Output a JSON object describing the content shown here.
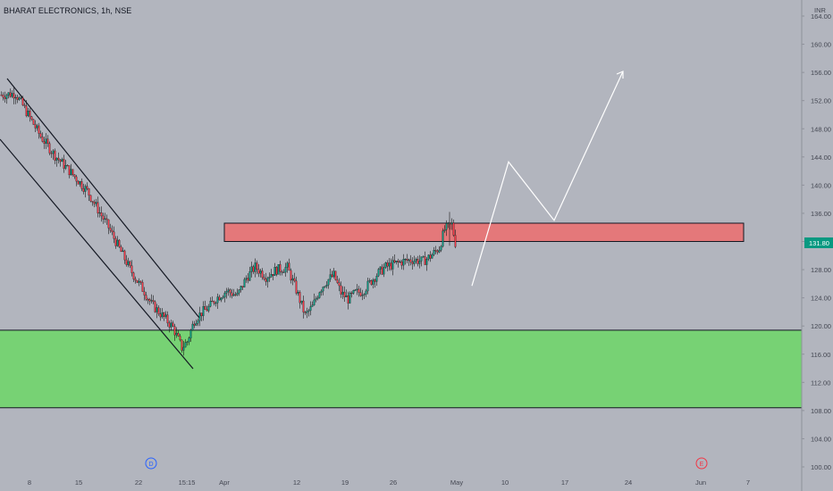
{
  "header": {
    "title": "BHARAT ELECTRONICS, 1h, NSE"
  },
  "chart_data": {
    "type": "candlestick",
    "currency": "INR",
    "ylim": [
      100,
      164
    ],
    "y_ticks": [
      "164.00",
      "160.00",
      "156.00",
      "152.00",
      "148.00",
      "144.00",
      "140.00",
      "136.00",
      "132.00",
      "128.00",
      "124.00",
      "120.00",
      "116.00",
      "112.00",
      "108.00",
      "104.00",
      "100.00"
    ],
    "x_ticks": [
      "8",
      "15",
      "22",
      "15:15",
      "Apr",
      "12",
      "19",
      "26",
      "May",
      "10",
      "17",
      "24",
      "Jun",
      "7"
    ],
    "last_price": "131.80",
    "colors": {
      "up": "#089981",
      "down": "#f23645",
      "demand_zone": "#77d274",
      "supply_zone": "#e4787a",
      "background": "#b2b5be"
    },
    "zones": [
      {
        "name": "demand",
        "top": 119.4,
        "bottom": 108.4
      },
      {
        "name": "supply",
        "top": 134.6,
        "bottom": 132.0
      }
    ],
    "path_points": [
      [
        128,
        119.8
      ],
      [
        141,
        125.3
      ],
      [
        148,
        119.6
      ]
    ],
    "dividend_markers": [
      "D",
      "E"
    ],
    "price_path": [
      [
        0,
        152.8
      ],
      [
        8,
        153.0
      ],
      [
        15,
        150.0
      ],
      [
        22,
        146.9
      ],
      [
        30,
        144.2
      ],
      [
        40,
        141.5
      ],
      [
        48,
        139.2
      ],
      [
        55,
        136.1
      ],
      [
        60,
        134.0
      ],
      [
        66,
        131.0
      ],
      [
        72,
        128.1
      ],
      [
        76,
        126.4
      ],
      [
        80,
        124.9
      ],
      [
        84,
        123.1
      ],
      [
        90,
        121.5
      ],
      [
        96,
        119.8
      ],
      [
        101,
        116.9
      ],
      [
        104,
        117.8
      ],
      [
        108,
        120.8
      ],
      [
        112,
        121.9
      ],
      [
        116,
        122.6
      ],
      [
        120,
        123.9
      ],
      [
        126,
        125.0
      ],
      [
        132,
        124.3
      ],
      [
        137,
        126.8
      ],
      [
        142,
        128.4
      ],
      [
        148,
        127.0
      ],
      [
        154,
        128.0
      ],
      [
        160,
        128.3
      ],
      [
        165,
        125.1
      ],
      [
        170,
        121.5
      ],
      [
        174,
        122.7
      ],
      [
        178,
        125.1
      ],
      [
        182,
        126.4
      ],
      [
        186,
        127.2
      ],
      [
        190,
        124.7
      ],
      [
        194,
        123.8
      ],
      [
        198,
        124.7
      ],
      [
        202,
        124.9
      ],
      [
        206,
        126.1
      ],
      [
        210,
        127.3
      ],
      [
        215,
        128.4
      ],
      [
        220,
        128.8
      ],
      [
        225,
        129.2
      ],
      [
        230,
        129.4
      ],
      [
        236,
        129.2
      ],
      [
        240,
        129.9
      ],
      [
        245,
        131.1
      ],
      [
        248,
        133.7
      ],
      [
        252,
        134.4
      ],
      [
        254,
        131.8
      ]
    ]
  }
}
